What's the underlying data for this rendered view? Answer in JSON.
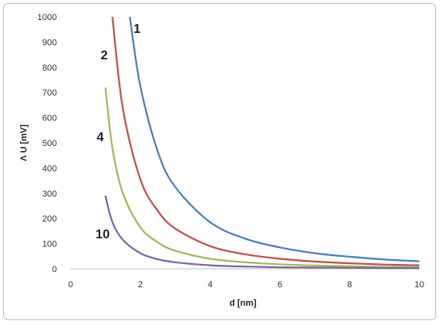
{
  "chart_data": {
    "type": "line",
    "xlabel": "d [nm]",
    "ylabel": "Λ U [mV]",
    "xlim": [
      0,
      10
    ],
    "ylim": [
      0,
      1000
    ],
    "xticks": [
      0,
      2,
      4,
      6,
      8,
      10
    ],
    "yticks": [
      0,
      100,
      200,
      300,
      400,
      500,
      600,
      700,
      800,
      900,
      1000
    ],
    "grid": false,
    "legend": "none",
    "series": [
      {
        "name": "1",
        "color": "#4a7ebb",
        "x": [
          1.7,
          2,
          2.5,
          3,
          4,
          5,
          6,
          7,
          8,
          9,
          10
        ],
        "y": [
          1000,
          725,
          465,
          325,
          185,
          120,
          85,
          62,
          48,
          37,
          30
        ]
      },
      {
        "name": "2",
        "color": "#c0504d",
        "x": [
          1.2,
          1.5,
          2,
          2.5,
          3,
          4,
          5,
          6,
          7,
          8,
          9,
          10
        ],
        "y": [
          1000,
          635,
          355,
          230,
          160,
          90,
          58,
          40,
          29,
          22,
          17,
          14
        ]
      },
      {
        "name": "4",
        "color": "#9bbb59",
        "x": [
          1,
          1.2,
          1.5,
          2,
          2.5,
          3,
          4,
          5,
          6,
          7,
          8,
          9,
          10
        ],
        "y": [
          720,
          480,
          300,
          165,
          105,
          72,
          40,
          26,
          18,
          13,
          10,
          8,
          7
        ]
      },
      {
        "name": "10",
        "color": "#8064a2",
        "x": [
          1,
          1.2,
          1.5,
          2,
          2.5,
          3,
          4,
          5,
          6,
          7,
          8,
          9,
          10
        ],
        "y": [
          290,
          185,
          115,
          62,
          38,
          26,
          14,
          9,
          6,
          5,
          4,
          3,
          3
        ]
      }
    ]
  }
}
